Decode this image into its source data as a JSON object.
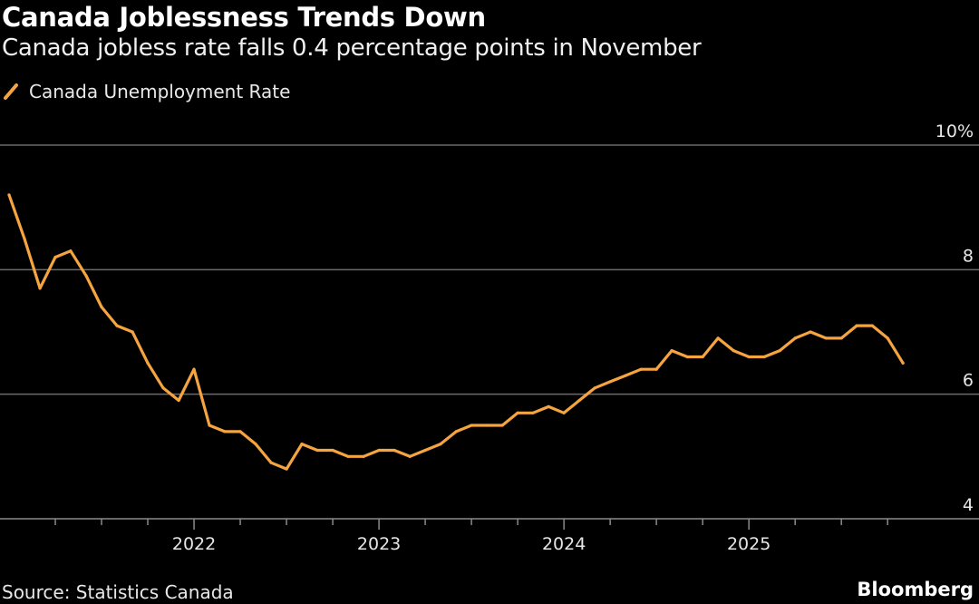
{
  "header": {
    "title": "Canada Joblessness Trends Down",
    "subtitle": "Canada jobless rate falls 0.4 percentage points in November"
  },
  "legend": {
    "label": "Canada Unemployment Rate",
    "icon": "line-swatch-icon"
  },
  "footer": {
    "source": "Source: Statistics Canada",
    "brand": "Bloomberg"
  },
  "colors": {
    "background": "#000000",
    "line": "#f5a43f",
    "grid": "#6b6b6b",
    "text": "#ffffff",
    "axis_text": "#e6e6e6"
  },
  "chart_data": {
    "type": "line",
    "title": "Canada Joblessness Trends Down",
    "subtitle": "Canada jobless rate falls 0.4 percentage points in November",
    "xlabel": "",
    "ylabel": "",
    "ylim": [
      4,
      10
    ],
    "yticks": [
      {
        "value": 10,
        "label": "10%"
      },
      {
        "value": 8,
        "label": "8"
      },
      {
        "value": 6,
        "label": "6"
      },
      {
        "value": 4,
        "label": "4"
      }
    ],
    "xticks": [
      {
        "value": 2022,
        "label": "2022"
      },
      {
        "value": 2023,
        "label": "2023"
      },
      {
        "value": 2024,
        "label": "2024"
      },
      {
        "value": 2025,
        "label": "2025"
      }
    ],
    "xlim": [
      2021.0,
      2025.95
    ],
    "grid": true,
    "legend_position": "top-left",
    "series": [
      {
        "name": "Canada Unemployment Rate",
        "x": [
          2021.0,
          2021.083,
          2021.167,
          2021.25,
          2021.333,
          2021.417,
          2021.5,
          2021.583,
          2021.667,
          2021.75,
          2021.833,
          2021.917,
          2022.0,
          2022.083,
          2022.167,
          2022.25,
          2022.333,
          2022.417,
          2022.5,
          2022.583,
          2022.667,
          2022.75,
          2022.833,
          2022.917,
          2023.0,
          2023.083,
          2023.167,
          2023.25,
          2023.333,
          2023.417,
          2023.5,
          2023.583,
          2023.667,
          2023.75,
          2023.833,
          2023.917,
          2024.0,
          2024.083,
          2024.167,
          2024.25,
          2024.333,
          2024.417,
          2024.5,
          2024.583,
          2024.667,
          2024.75,
          2024.833,
          2024.917,
          2025.0,
          2025.083,
          2025.167,
          2025.25,
          2025.333,
          2025.417,
          2025.5,
          2025.583,
          2025.667,
          2025.75,
          2025.833
        ],
        "values": [
          9.2,
          8.5,
          7.7,
          8.2,
          8.3,
          7.9,
          7.4,
          7.1,
          7.0,
          6.5,
          6.1,
          5.9,
          6.4,
          5.5,
          5.4,
          5.4,
          5.2,
          4.9,
          4.8,
          5.2,
          5.1,
          5.1,
          5.0,
          5.0,
          5.1,
          5.1,
          5.0,
          5.1,
          5.2,
          5.4,
          5.5,
          5.5,
          5.5,
          5.7,
          5.7,
          5.8,
          5.7,
          5.9,
          6.1,
          6.2,
          6.3,
          6.4,
          6.4,
          6.7,
          6.6,
          6.6,
          6.9,
          6.7,
          6.6,
          6.6,
          6.7,
          6.9,
          7.0,
          6.9,
          6.9,
          7.1,
          7.1,
          6.9,
          6.5
        ]
      }
    ]
  }
}
